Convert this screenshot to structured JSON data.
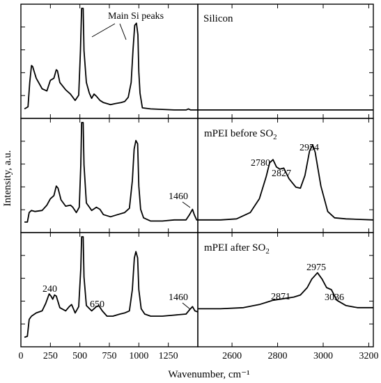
{
  "chart_data": {
    "type": "line",
    "ylabel": "Intensity, a.u.",
    "xlabel": "Wavenumber, cm⁻¹",
    "layout": "3 rows x 2 columns, shared x-axes per column, broken x-axis",
    "left_xaxis": {
      "xlim": [
        0,
        1500
      ],
      "ticks": [
        0,
        250,
        500,
        750,
        1000,
        1250
      ],
      "tick_labels": [
        "0",
        "250",
        "500",
        "750",
        "1000",
        "1250"
      ]
    },
    "right_xaxis": {
      "xlim": [
        2450,
        3220
      ],
      "ticks": [
        2600,
        2800,
        3000,
        3200
      ],
      "tick_labels": [
        "2600",
        "2800",
        "3000",
        "3200"
      ]
    },
    "ylim": [
      0,
      1
    ],
    "grid": false,
    "panels": [
      {
        "label": "",
        "left_series": [
          [
            30,
            0.05
          ],
          [
            60,
            0.07
          ],
          [
            75,
            0.3
          ],
          [
            90,
            0.46
          ],
          [
            100,
            0.45
          ],
          [
            130,
            0.34
          ],
          [
            180,
            0.24
          ],
          [
            220,
            0.22
          ],
          [
            250,
            0.32
          ],
          [
            280,
            0.34
          ],
          [
            300,
            0.42
          ],
          [
            310,
            0.41
          ],
          [
            330,
            0.3
          ],
          [
            380,
            0.23
          ],
          [
            420,
            0.19
          ],
          [
            460,
            0.13
          ],
          [
            490,
            0.18
          ],
          [
            505,
            0.6
          ],
          [
            515,
            1.0
          ],
          [
            528,
            1.0
          ],
          [
            535,
            0.6
          ],
          [
            555,
            0.3
          ],
          [
            580,
            0.2
          ],
          [
            600,
            0.15
          ],
          [
            620,
            0.19
          ],
          [
            640,
            0.17
          ],
          [
            670,
            0.13
          ],
          [
            700,
            0.11
          ],
          [
            760,
            0.09
          ],
          [
            800,
            0.1
          ],
          [
            850,
            0.11
          ],
          [
            880,
            0.12
          ],
          [
            910,
            0.16
          ],
          [
            935,
            0.3
          ],
          [
            950,
            0.6
          ],
          [
            965,
            0.84
          ],
          [
            980,
            0.86
          ],
          [
            992,
            0.75
          ],
          [
            1000,
            0.4
          ],
          [
            1010,
            0.2
          ],
          [
            1030,
            0.06
          ],
          [
            1100,
            0.05
          ],
          [
            1300,
            0.04
          ],
          [
            1400,
            0.04
          ],
          [
            1420,
            0.05
          ],
          [
            1440,
            0.04
          ],
          [
            1500,
            0.04
          ]
        ],
        "right_series": [
          [
            2450,
            0.04
          ],
          [
            3220,
            0.04
          ]
        ],
        "right_label": "Silicon",
        "annotations": [
          {
            "text": "Main Si peaks"
          }
        ]
      },
      {
        "label": "",
        "left_series": [
          [
            30,
            0.06
          ],
          [
            55,
            0.06
          ],
          [
            70,
            0.15
          ],
          [
            90,
            0.17
          ],
          [
            120,
            0.16
          ],
          [
            180,
            0.17
          ],
          [
            220,
            0.22
          ],
          [
            250,
            0.28
          ],
          [
            280,
            0.31
          ],
          [
            300,
            0.4
          ],
          [
            315,
            0.38
          ],
          [
            340,
            0.27
          ],
          [
            380,
            0.21
          ],
          [
            420,
            0.22
          ],
          [
            440,
            0.2
          ],
          [
            470,
            0.15
          ],
          [
            495,
            0.2
          ],
          [
            508,
            0.6
          ],
          [
            515,
            1.0
          ],
          [
            528,
            1.0
          ],
          [
            535,
            0.6
          ],
          [
            555,
            0.24
          ],
          [
            600,
            0.17
          ],
          [
            640,
            0.2
          ],
          [
            670,
            0.18
          ],
          [
            700,
            0.13
          ],
          [
            760,
            0.11
          ],
          [
            820,
            0.13
          ],
          [
            880,
            0.15
          ],
          [
            920,
            0.19
          ],
          [
            945,
            0.45
          ],
          [
            960,
            0.75
          ],
          [
            975,
            0.83
          ],
          [
            990,
            0.8
          ],
          [
            1000,
            0.4
          ],
          [
            1015,
            0.18
          ],
          [
            1040,
            0.1
          ],
          [
            1100,
            0.07
          ],
          [
            1200,
            0.07
          ],
          [
            1300,
            0.08
          ],
          [
            1400,
            0.08
          ],
          [
            1430,
            0.13
          ],
          [
            1455,
            0.18
          ],
          [
            1470,
            0.13
          ],
          [
            1490,
            0.08
          ],
          [
            1500,
            0.08
          ]
        ],
        "right_series": [
          [
            2450,
            0.08
          ],
          [
            2550,
            0.08
          ],
          [
            2620,
            0.09
          ],
          [
            2680,
            0.15
          ],
          [
            2720,
            0.28
          ],
          [
            2750,
            0.49
          ],
          [
            2765,
            0.62
          ],
          [
            2780,
            0.65
          ],
          [
            2795,
            0.58
          ],
          [
            2810,
            0.56
          ],
          [
            2827,
            0.57
          ],
          [
            2850,
            0.47
          ],
          [
            2880,
            0.39
          ],
          [
            2900,
            0.38
          ],
          [
            2920,
            0.5
          ],
          [
            2940,
            0.73
          ],
          [
            2954,
            0.79
          ],
          [
            2965,
            0.72
          ],
          [
            2990,
            0.4
          ],
          [
            3020,
            0.16
          ],
          [
            3050,
            0.1
          ],
          [
            3100,
            0.09
          ],
          [
            3220,
            0.08
          ]
        ],
        "right_label": "mPEI before SO",
        "right_label_sub": "2",
        "annotations": [
          {
            "text": "1460"
          },
          {
            "text": "2780"
          },
          {
            "text": "2827"
          },
          {
            "text": "2954"
          }
        ]
      },
      {
        "label": "",
        "left_series": [
          [
            30,
            0.05
          ],
          [
            55,
            0.06
          ],
          [
            70,
            0.22
          ],
          [
            90,
            0.25
          ],
          [
            130,
            0.28
          ],
          [
            180,
            0.3
          ],
          [
            210,
            0.37
          ],
          [
            240,
            0.46
          ],
          [
            255,
            0.44
          ],
          [
            270,
            0.41
          ],
          [
            285,
            0.45
          ],
          [
            300,
            0.44
          ],
          [
            330,
            0.33
          ],
          [
            380,
            0.3
          ],
          [
            410,
            0.34
          ],
          [
            430,
            0.36
          ],
          [
            460,
            0.28
          ],
          [
            490,
            0.34
          ],
          [
            508,
            0.7
          ],
          [
            515,
            1.0
          ],
          [
            528,
            1.0
          ],
          [
            535,
            0.62
          ],
          [
            555,
            0.35
          ],
          [
            600,
            0.3
          ],
          [
            640,
            0.34
          ],
          [
            660,
            0.35
          ],
          [
            690,
            0.3
          ],
          [
            730,
            0.25
          ],
          [
            780,
            0.25
          ],
          [
            840,
            0.27
          ],
          [
            880,
            0.28
          ],
          [
            920,
            0.3
          ],
          [
            945,
            0.5
          ],
          [
            962,
            0.8
          ],
          [
            975,
            0.86
          ],
          [
            990,
            0.8
          ],
          [
            1000,
            0.5
          ],
          [
            1020,
            0.32
          ],
          [
            1050,
            0.27
          ],
          [
            1100,
            0.25
          ],
          [
            1200,
            0.25
          ],
          [
            1300,
            0.26
          ],
          [
            1400,
            0.27
          ],
          [
            1430,
            0.31
          ],
          [
            1455,
            0.34
          ],
          [
            1475,
            0.3
          ],
          [
            1500,
            0.29
          ]
        ],
        "right_series": [
          [
            2450,
            0.32
          ],
          [
            2550,
            0.32
          ],
          [
            2650,
            0.33
          ],
          [
            2720,
            0.36
          ],
          [
            2780,
            0.4
          ],
          [
            2840,
            0.42
          ],
          [
            2871,
            0.43
          ],
          [
            2900,
            0.45
          ],
          [
            2930,
            0.52
          ],
          [
            2950,
            0.6
          ],
          [
            2975,
            0.66
          ],
          [
            2995,
            0.6
          ],
          [
            3015,
            0.52
          ],
          [
            3036,
            0.5
          ],
          [
            3060,
            0.4
          ],
          [
            3100,
            0.35
          ],
          [
            3150,
            0.33
          ],
          [
            3220,
            0.33
          ]
        ],
        "right_label": "mPEI after SO",
        "right_label_sub": "2",
        "annotations": [
          {
            "text": "240"
          },
          {
            "text": "650"
          },
          {
            "text": "1460"
          },
          {
            "text": "2871"
          },
          {
            "text": "2975"
          },
          {
            "text": "3036"
          }
        ]
      }
    ]
  }
}
